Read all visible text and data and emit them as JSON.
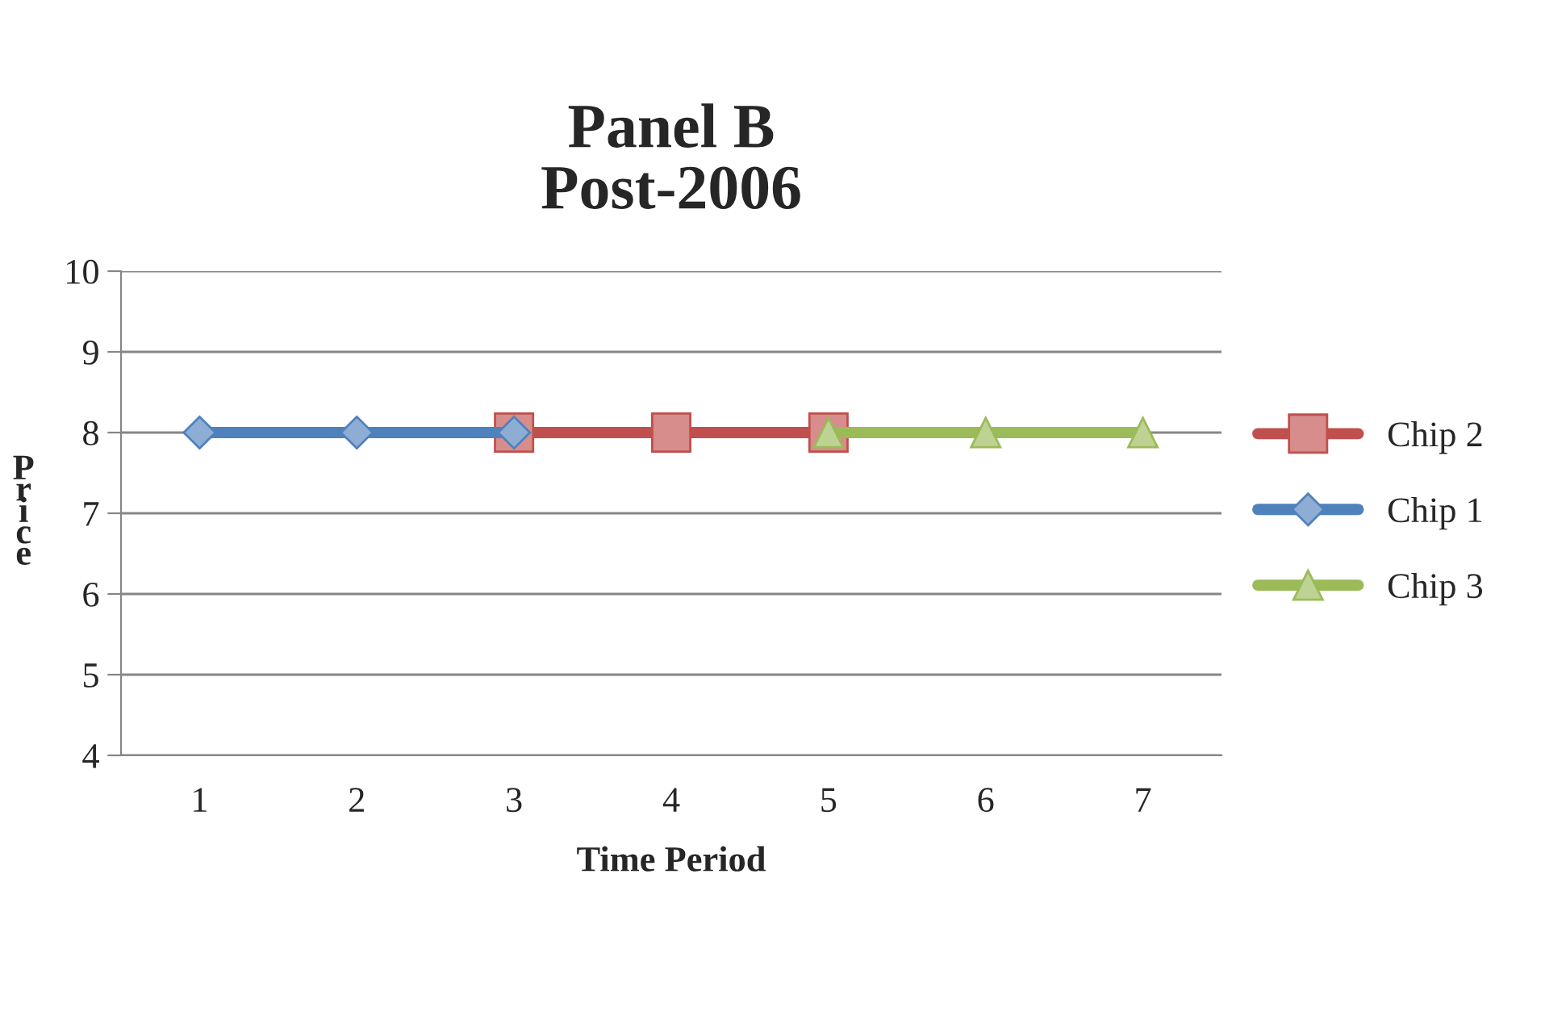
{
  "chart_data": {
    "type": "line",
    "title": "Panel B\nPost-2006",
    "xlabel": "Time Period",
    "ylabel": "Price",
    "categories": [
      "1",
      "2",
      "3",
      "4",
      "5",
      "6",
      "7"
    ],
    "series": [
      {
        "name": "Chip 2",
        "color": "#c0504d",
        "marker": "square",
        "values": [
          null,
          null,
          8,
          8,
          8,
          null,
          null
        ]
      },
      {
        "name": "Chip 1",
        "color": "#4f81bd",
        "marker": "diamond",
        "values": [
          8,
          8,
          8,
          null,
          null,
          null,
          null
        ]
      },
      {
        "name": "Chip 3",
        "color": "#9bbb59",
        "marker": "triangle",
        "values": [
          null,
          null,
          null,
          null,
          8,
          8,
          8
        ]
      }
    ],
    "ylim": [
      4,
      10
    ],
    "yticks": [
      4,
      5,
      6,
      7,
      8,
      9,
      10
    ],
    "grid": "y",
    "legend": "right",
    "line_style": "solid"
  }
}
